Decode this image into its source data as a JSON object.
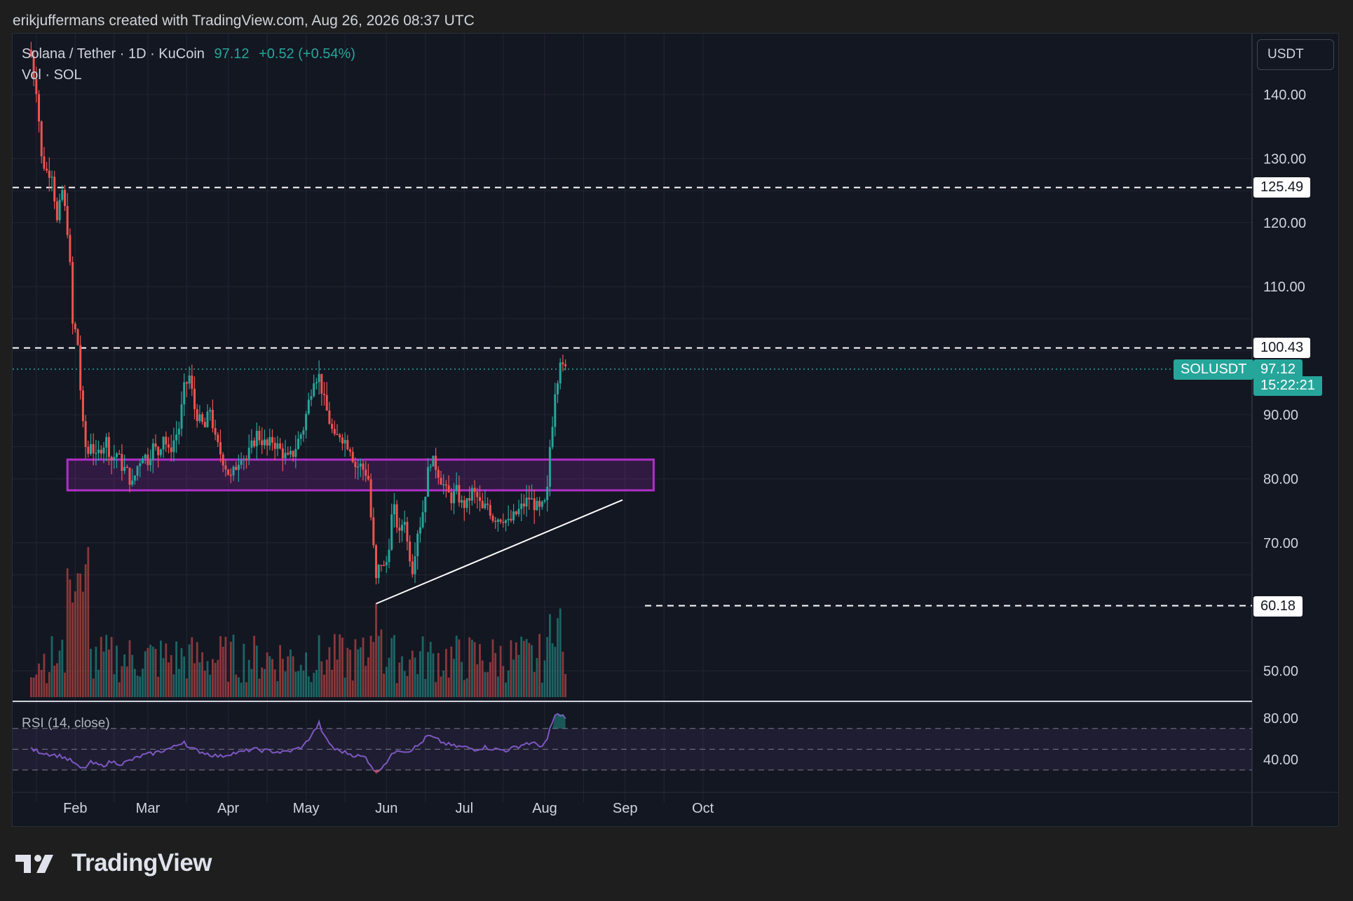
{
  "header": {
    "attribution": "erikjuffermans created with TradingView.com, Aug 26, 2026 08:37 UTC"
  },
  "legend": {
    "title": "Solana / Tether · 1D · KuCoin",
    "last": "97.12",
    "change": "+0.52 (+0.54%)",
    "volume_label": "Vol · SOL"
  },
  "currency_button": "USDT",
  "symbol_tag": "SOLUSDT",
  "last_price_tag": "97.12",
  "countdown": "15:22:21",
  "rsi_label": "RSI (14, close)",
  "brand": "TradingView",
  "colors": {
    "background": "#131722",
    "grid": "#232632",
    "up": "#26a69a",
    "down": "#ef5350",
    "zone": "#9c27b0",
    "rsi": "#7e57c2",
    "text": "#d1d4dc"
  },
  "chart_data": {
    "type": "candlestick",
    "symbol": "SOLUSDT",
    "interval": "1D",
    "exchange": "KuCoin",
    "y_ticks": [
      "140.00",
      "130.00",
      "120.00",
      "110.00",
      "100.00",
      "90.00",
      "80.00",
      "70.00",
      "60.00",
      "50.00"
    ],
    "y_tick_values": [
      140,
      130,
      120,
      110,
      100,
      90,
      80,
      70,
      60,
      50
    ],
    "x_ticks": [
      "Feb",
      "Mar",
      "Apr",
      "May",
      "Jun",
      "Jul",
      "Aug",
      "Sep",
      "Oct"
    ],
    "x_tick_days": [
      27,
      55,
      86,
      116,
      147,
      177,
      208,
      239,
      269
    ],
    "horizontal_levels": [
      {
        "label": "125.49",
        "value": 125.49
      },
      {
        "label": "100.43",
        "value": 100.43
      },
      {
        "label": "60.18",
        "value": 60.18
      }
    ],
    "last_price": 97.12,
    "support_zone": {
      "from_day": 24,
      "to_day": 250,
      "low": 78.2,
      "high": 83.0
    },
    "trendline": {
      "start_day": 143,
      "start_price": 60.5,
      "end_day": 238,
      "end_price": 76.7
    },
    "price_anchors": [
      [
        10,
        146
      ],
      [
        11,
        143
      ],
      [
        12,
        141
      ],
      [
        13,
        136
      ],
      [
        14,
        130
      ],
      [
        16,
        128
      ],
      [
        18,
        128
      ],
      [
        20,
        120
      ],
      [
        22,
        125
      ],
      [
        23,
        122
      ],
      [
        24,
        119
      ],
      [
        25,
        113
      ],
      [
        26,
        104
      ],
      [
        27,
        103
      ],
      [
        28,
        101
      ],
      [
        29,
        94
      ],
      [
        30,
        88
      ],
      [
        31,
        85
      ],
      [
        32,
        84
      ],
      [
        33,
        86
      ],
      [
        35,
        83
      ],
      [
        37,
        85
      ],
      [
        39,
        86
      ],
      [
        41,
        83
      ],
      [
        43,
        84
      ],
      [
        45,
        82
      ],
      [
        47,
        81
      ],
      [
        49,
        79
      ],
      [
        51,
        82
      ],
      [
        53,
        84
      ],
      [
        55,
        83
      ],
      [
        57,
        85
      ],
      [
        59,
        84
      ],
      [
        61,
        87
      ],
      [
        63,
        84
      ],
      [
        65,
        86
      ],
      [
        67,
        88
      ],
      [
        69,
        94
      ],
      [
        71,
        96
      ],
      [
        73,
        91
      ],
      [
        75,
        89
      ],
      [
        77,
        88
      ],
      [
        79,
        91
      ],
      [
        81,
        86
      ],
      [
        83,
        84
      ],
      [
        85,
        82
      ],
      [
        87,
        80
      ],
      [
        89,
        82
      ],
      [
        91,
        84
      ],
      [
        93,
        83
      ],
      [
        95,
        85
      ],
      [
        97,
        87
      ],
      [
        99,
        86
      ],
      [
        101,
        85
      ],
      [
        103,
        86
      ],
      [
        105,
        85
      ],
      [
        107,
        84
      ],
      [
        109,
        83
      ],
      [
        111,
        84
      ],
      [
        113,
        86
      ],
      [
        115,
        88
      ],
      [
        117,
        92
      ],
      [
        119,
        96
      ],
      [
        121,
        96
      ],
      [
        123,
        92
      ],
      [
        125,
        89
      ],
      [
        127,
        86
      ],
      [
        129,
        87
      ],
      [
        131,
        86
      ],
      [
        133,
        85
      ],
      [
        135,
        82
      ],
      [
        137,
        82
      ],
      [
        139,
        81
      ],
      [
        140,
        80
      ],
      [
        141,
        74
      ],
      [
        142,
        69
      ],
      [
        143,
        64
      ],
      [
        144,
        66
      ],
      [
        145,
        67
      ],
      [
        146,
        66
      ],
      [
        147,
        67
      ],
      [
        148,
        70
      ],
      [
        149,
        74
      ],
      [
        150,
        75
      ],
      [
        151,
        73
      ],
      [
        152,
        71
      ],
      [
        153,
        73
      ],
      [
        154,
        74
      ],
      [
        155,
        70
      ],
      [
        156,
        68
      ],
      [
        157,
        66
      ],
      [
        158,
        69
      ],
      [
        159,
        72
      ],
      [
        160,
        73
      ],
      [
        161,
        75
      ],
      [
        162,
        78
      ],
      [
        163,
        81
      ],
      [
        164,
        83
      ],
      [
        166,
        82
      ],
      [
        168,
        80
      ],
      [
        170,
        78
      ],
      [
        172,
        77
      ],
      [
        174,
        78
      ],
      [
        176,
        76
      ],
      [
        178,
        76
      ],
      [
        180,
        78
      ],
      [
        182,
        77
      ],
      [
        184,
        75
      ],
      [
        186,
        76
      ],
      [
        188,
        74
      ],
      [
        190,
        74
      ],
      [
        192,
        74
      ],
      [
        194,
        73
      ],
      [
        196,
        74
      ],
      [
        198,
        75
      ],
      [
        200,
        76
      ],
      [
        202,
        77
      ],
      [
        204,
        76
      ],
      [
        206,
        75
      ],
      [
        208,
        76
      ],
      [
        209,
        78
      ],
      [
        210,
        85
      ],
      [
        211,
        89
      ],
      [
        212,
        94
      ],
      [
        213,
        96
      ],
      [
        214,
        99
      ],
      [
        215,
        97
      ],
      [
        216,
        97
      ]
    ],
    "rsi": {
      "y_ticks": [
        "80.00",
        "40.00"
      ],
      "y_tick_values": [
        80,
        40
      ],
      "band": [
        30,
        70
      ],
      "midline": 50,
      "anchors": [
        [
          10,
          50
        ],
        [
          14,
          47
        ],
        [
          18,
          45
        ],
        [
          22,
          43
        ],
        [
          26,
          38
        ],
        [
          28,
          33
        ],
        [
          30,
          31
        ],
        [
          33,
          37
        ],
        [
          37,
          34
        ],
        [
          41,
          38
        ],
        [
          45,
          36
        ],
        [
          49,
          40
        ],
        [
          53,
          44
        ],
        [
          57,
          46
        ],
        [
          61,
          49
        ],
        [
          65,
          52
        ],
        [
          69,
          58
        ],
        [
          71,
          51
        ],
        [
          75,
          48
        ],
        [
          79,
          45
        ],
        [
          83,
          43
        ],
        [
          87,
          46
        ],
        [
          91,
          47
        ],
        [
          95,
          50
        ],
        [
          99,
          49
        ],
        [
          103,
          48
        ],
        [
          107,
          47
        ],
        [
          111,
          49
        ],
        [
          115,
          53
        ],
        [
          119,
          67
        ],
        [
          121,
          75
        ],
        [
          123,
          62
        ],
        [
          127,
          50
        ],
        [
          131,
          47
        ],
        [
          135,
          44
        ],
        [
          139,
          42
        ],
        [
          141,
          35
        ],
        [
          143,
          27
        ],
        [
          145,
          33
        ],
        [
          147,
          38
        ],
        [
          149,
          44
        ],
        [
          151,
          50
        ],
        [
          155,
          48
        ],
        [
          159,
          53
        ],
        [
          161,
          58
        ],
        [
          163,
          63
        ],
        [
          165,
          61
        ],
        [
          169,
          56
        ],
        [
          173,
          53
        ],
        [
          177,
          52
        ],
        [
          181,
          50
        ],
        [
          185,
          52
        ],
        [
          189,
          50
        ],
        [
          193,
          49
        ],
        [
          197,
          52
        ],
        [
          201,
          56
        ],
        [
          205,
          55
        ],
        [
          207,
          53
        ],
        [
          209,
          58
        ],
        [
          210,
          70
        ],
        [
          211,
          76
        ],
        [
          212,
          82
        ],
        [
          214,
          84
        ],
        [
          216,
          80
        ]
      ]
    },
    "volume": {
      "label": "Vol · SOL",
      "max_value": 100
    }
  }
}
